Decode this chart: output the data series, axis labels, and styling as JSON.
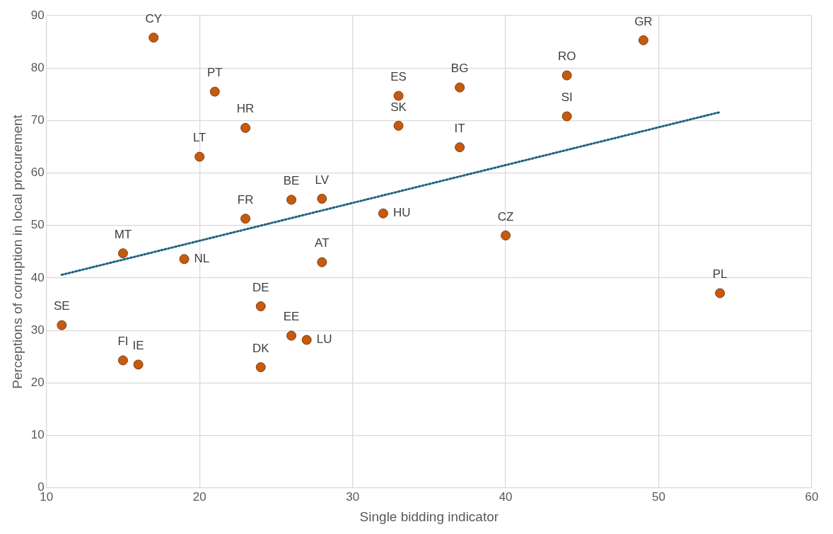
{
  "chart_data": {
    "type": "scatter",
    "xlabel": "Single bidding indicator",
    "ylabel": "Perceptions of corruption in local procurement",
    "xlim": [
      10,
      60
    ],
    "xticks": [
      10,
      20,
      30,
      40,
      50,
      60
    ],
    "ylim": [
      0,
      90
    ],
    "yticks": [
      0,
      10,
      20,
      30,
      40,
      50,
      60,
      70,
      80,
      90
    ],
    "grid": true,
    "legend": false,
    "marker": "circle",
    "series": [
      {
        "color": "#c55a11",
        "x": [
          11,
          15,
          16,
          15,
          19,
          17,
          21,
          23,
          20,
          23,
          26,
          28,
          28,
          24,
          26,
          27,
          24,
          32,
          33,
          33,
          37,
          37,
          40,
          44,
          44,
          49,
          54
        ],
        "values": [
          31,
          24.3,
          23.5,
          44.7,
          43.6,
          85.8,
          75.5,
          68.6,
          63.1,
          51.3,
          54.9,
          55.1,
          43,
          34.6,
          29,
          28.2,
          23,
          52.3,
          74.7,
          69,
          76.3,
          64.9,
          48.1,
          78.6,
          70.8,
          85.3,
          37.1
        ]
      },
      {
        "type": "line",
        "color": "#1f6182",
        "line_style": "dotted",
        "marker": "none",
        "x": [
          11,
          54
        ],
        "values": [
          40.6,
          71.6
        ]
      }
    ],
    "annotations": [
      {
        "text": "SE",
        "x": 11,
        "y": 31
      },
      {
        "text": "FI",
        "x": 15,
        "y": 24.3
      },
      {
        "text": "IE",
        "x": 16,
        "y": 23.5
      },
      {
        "text": "MT",
        "x": 15,
        "y": 44.7
      },
      {
        "text": "NL",
        "x": 19,
        "y": 43.6
      },
      {
        "text": "CY",
        "x": 17,
        "y": 85.8
      },
      {
        "text": "PT",
        "x": 21,
        "y": 75.5
      },
      {
        "text": "HR",
        "x": 23,
        "y": 68.6
      },
      {
        "text": "LT",
        "x": 20,
        "y": 63.1
      },
      {
        "text": "FR",
        "x": 23,
        "y": 51.3
      },
      {
        "text": "BE",
        "x": 26,
        "y": 54.9
      },
      {
        "text": "LV",
        "x": 28,
        "y": 55.1
      },
      {
        "text": "AT",
        "x": 28,
        "y": 43
      },
      {
        "text": "DE",
        "x": 24,
        "y": 34.6
      },
      {
        "text": "EE",
        "x": 26,
        "y": 29
      },
      {
        "text": "LU",
        "x": 27,
        "y": 28.2
      },
      {
        "text": "DK",
        "x": 24,
        "y": 23
      },
      {
        "text": "HU",
        "x": 32,
        "y": 52.3
      },
      {
        "text": "ES",
        "x": 33,
        "y": 74.7
      },
      {
        "text": "SK",
        "x": 33,
        "y": 69
      },
      {
        "text": "BG",
        "x": 37,
        "y": 76.3
      },
      {
        "text": "IT",
        "x": 37,
        "y": 64.9
      },
      {
        "text": "CZ",
        "x": 40,
        "y": 48.1
      },
      {
        "text": "RO",
        "x": 44,
        "y": 78.6
      },
      {
        "text": "SI",
        "x": 44,
        "y": 70.8
      },
      {
        "text": "GR",
        "x": 49,
        "y": 85.3
      },
      {
        "text": "PL",
        "x": 54,
        "y": 37.1
      }
    ]
  }
}
